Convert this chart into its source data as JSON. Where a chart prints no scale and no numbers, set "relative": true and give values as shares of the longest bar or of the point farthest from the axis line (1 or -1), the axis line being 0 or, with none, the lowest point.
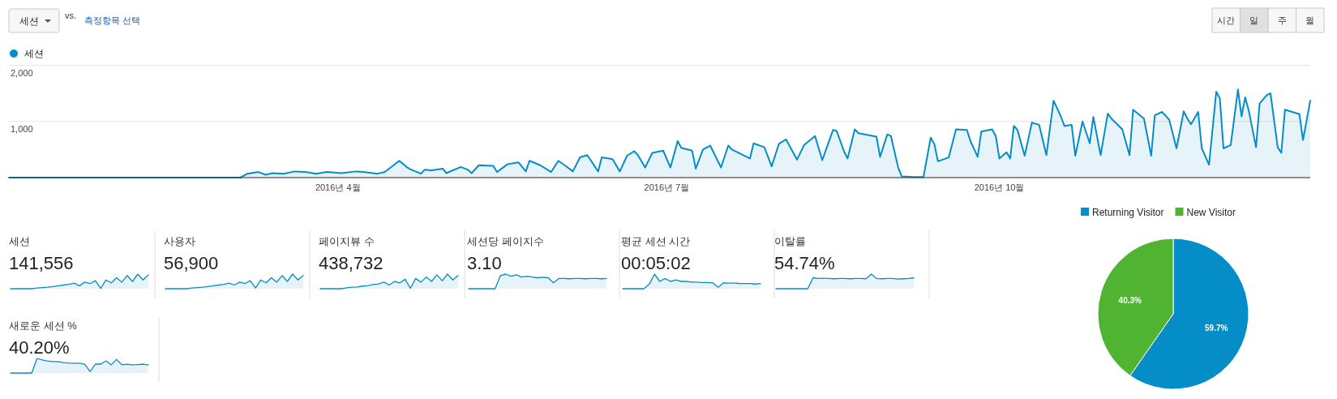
{
  "chart_data": [
    {
      "type": "other",
      "annotations": [
        "세션",
        "vs.",
        "측정항목 선택",
        "시간",
        "일",
        "주",
        "월"
      ]
    },
    {
      "type": "area",
      "legend": "top left",
      "grid": "y",
      "xlim": [
        "2016-01-01",
        "2016-12-26"
      ],
      "ylim": [
        0,
        2000
      ],
      "xticks": [
        {
          "value": "2016-04-01",
          "label": "2016년 4월"
        },
        {
          "value": "2016-07-01",
          "label": "2016년 7월"
        },
        {
          "value": "2016-10-01",
          "label": "2016년 10월"
        }
      ],
      "yticks": [
        {
          "value": 0,
          "label": null
        },
        {
          "value": 1000,
          "label": "1,000"
        },
        {
          "value": 2000,
          "label": "2,000"
        }
      ],
      "x": [
        "2016-01-01",
        "2016-03-05",
        "2016-03-07",
        "2016-03-10",
        "2016-03-12",
        "2016-03-14",
        "2016-03-17",
        "2016-03-20",
        "2016-03-23",
        "2016-03-26",
        "2016-03-29",
        "2016-04-02",
        "2016-04-06",
        "2016-04-08",
        "2016-04-12",
        "2016-04-14",
        "2016-04-18",
        "2016-04-20",
        "2016-04-21",
        "2016-04-24",
        "2016-04-25",
        "2016-04-27",
        "2016-04-30",
        "2016-05-01",
        "2016-05-05",
        "2016-05-07",
        "2016-05-08",
        "2016-05-10",
        "2016-05-14",
        "2016-05-15",
        "2016-05-18",
        "2016-05-21",
        "2016-05-23",
        "2016-05-24",
        "2016-05-27",
        "2016-05-30",
        "2016-06-01",
        "2016-06-03",
        "2016-06-05",
        "2016-06-07",
        "2016-06-09",
        "2016-06-12",
        "2016-06-13",
        "2016-06-16",
        "2016-06-18",
        "2016-06-20",
        "2016-06-22",
        "2016-06-23",
        "2016-06-25",
        "2016-06-27",
        "2016-06-30",
        "2016-07-02",
        "2016-07-04",
        "2016-07-05",
        "2016-07-08",
        "2016-07-09",
        "2016-07-11",
        "2016-07-13",
        "2016-07-16",
        "2016-07-18",
        "2016-07-19",
        "2016-07-24",
        "2016-07-25",
        "2016-07-28",
        "2016-07-30",
        "2016-08-01",
        "2016-08-03",
        "2016-08-06",
        "2016-08-08",
        "2016-08-11",
        "2016-08-13",
        "2016-08-16",
        "2016-08-17",
        "2016-08-19",
        "2016-08-20",
        "2016-08-22",
        "2016-08-23",
        "2016-08-28",
        "2016-08-29",
        "2016-08-31",
        "2016-09-01",
        "2016-09-03",
        "2016-09-04",
        "2016-09-07",
        "2016-09-10",
        "2016-09-12",
        "2016-09-13",
        "2016-09-14",
        "2016-09-17",
        "2016-09-19",
        "2016-09-22",
        "2016-09-23",
        "2016-09-25",
        "2016-09-26",
        "2016-09-29",
        "2016-09-30",
        "2016-10-01",
        "2016-10-03",
        "2016-10-04",
        "2016-10-05",
        "2016-10-06",
        "2016-10-08",
        "2016-10-10",
        "2016-10-12",
        "2016-10-14",
        "2016-10-16",
        "2016-10-18",
        "2016-10-19",
        "2016-10-21",
        "2016-10-22",
        "2016-10-24",
        "2016-10-26",
        "2016-10-27",
        "2016-10-29",
        "2016-10-31",
        "2016-11-01",
        "2016-11-04",
        "2016-11-06",
        "2016-11-07",
        "2016-11-10",
        "2016-11-12",
        "2016-11-13",
        "2016-11-15",
        "2016-11-17",
        "2016-11-19",
        "2016-11-21",
        "2016-11-22",
        "2016-11-23",
        "2016-11-25",
        "2016-11-26",
        "2016-11-28",
        "2016-11-30",
        "2016-12-01",
        "2016-12-02",
        "2016-12-04",
        "2016-12-06",
        "2016-12-07",
        "2016-12-08",
        "2016-12-09",
        "2016-12-11",
        "2016-12-12",
        "2016-12-14",
        "2016-12-15",
        "2016-12-17",
        "2016-12-18",
        "2016-12-19",
        "2016-12-21",
        "2016-12-23",
        "2016-12-24",
        "2016-12-26"
      ],
      "series": [
        {
          "name": "세션",
          "color": "#058dc7",
          "values": [
            0,
            0,
            70,
            100,
            50,
            80,
            70,
            110,
            100,
            70,
            100,
            80,
            110,
            100,
            70,
            100,
            300,
            190,
            150,
            70,
            140,
            130,
            160,
            80,
            190,
            140,
            80,
            220,
            210,
            100,
            240,
            270,
            110,
            300,
            220,
            100,
            300,
            210,
            110,
            360,
            400,
            110,
            360,
            330,
            110,
            390,
            470,
            400,
            180,
            440,
            480,
            180,
            650,
            530,
            480,
            160,
            500,
            570,
            180,
            570,
            500,
            340,
            610,
            540,
            200,
            600,
            680,
            320,
            580,
            740,
            310,
            850,
            830,
            470,
            340,
            860,
            790,
            730,
            370,
            770,
            740,
            180,
            20,
            10,
            10,
            710,
            600,
            290,
            360,
            860,
            850,
            650,
            370,
            820,
            860,
            740,
            340,
            450,
            340,
            920,
            850,
            390,
            980,
            940,
            400,
            1370,
            1090,
            920,
            940,
            390,
            1000,
            610,
            1080,
            400,
            1140,
            1050,
            860,
            400,
            1210,
            1050,
            390,
            1110,
            1170,
            1030,
            520,
            1180,
            1050,
            950,
            1170,
            520,
            230,
            1530,
            1410,
            520,
            580,
            1570,
            1090,
            1430,
            1190,
            540,
            1320,
            1470,
            1500,
            540,
            440,
            1210,
            1170,
            1130,
            670,
            1370
          ]
        }
      ]
    },
    {
      "type": "area",
      "relative": true,
      "title": "세션",
      "annotations": [
        "141,556"
      ],
      "categories": [
        null,
        null,
        null,
        null,
        null,
        null,
        null,
        null,
        null,
        null,
        null,
        null,
        null,
        null,
        null,
        null,
        null,
        null,
        null,
        null,
        null,
        null,
        null,
        null,
        null,
        null,
        null
      ],
      "series": [
        {
          "color": "#058dc7",
          "values": [
            0,
            0,
            0,
            0,
            0,
            0.05,
            0.08,
            0.1,
            0.15,
            0.2,
            0.25,
            0.3,
            0.38,
            0.2,
            0.45,
            0.35,
            0.55,
            0.02,
            0.6,
            0.4,
            0.75,
            0.45,
            0.9,
            0.5,
            1,
            0.6,
            0.95
          ]
        }
      ]
    },
    {
      "type": "area",
      "relative": true,
      "title": "사용자",
      "annotations": [
        "56,900"
      ],
      "categories": [
        null,
        null,
        null,
        null,
        null,
        null,
        null,
        null,
        null,
        null,
        null,
        null,
        null,
        null,
        null,
        null,
        null,
        null,
        null,
        null,
        null,
        null,
        null,
        null,
        null,
        null,
        null
      ],
      "series": [
        {
          "color": "#058dc7",
          "values": [
            0,
            0,
            0,
            0,
            0,
            0.05,
            0.08,
            0.1,
            0.15,
            0.2,
            0.25,
            0.3,
            0.38,
            0.25,
            0.45,
            0.35,
            0.55,
            0.05,
            0.6,
            0.4,
            0.75,
            0.45,
            0.9,
            0.5,
            1,
            0.6,
            0.9
          ]
        }
      ]
    },
    {
      "type": "area",
      "relative": true,
      "title": "페이지뷰 수",
      "annotations": [
        "438,732"
      ],
      "categories": [
        null,
        null,
        null,
        null,
        null,
        null,
        null,
        null,
        null,
        null,
        null,
        null,
        null,
        null,
        null,
        null,
        null,
        null,
        null,
        null,
        null,
        null,
        null,
        null,
        null,
        null,
        null
      ],
      "series": [
        {
          "color": "#058dc7",
          "values": [
            0,
            0,
            0,
            0,
            0,
            0.06,
            0.1,
            0.12,
            0.18,
            0.22,
            0.28,
            0.33,
            0.45,
            0.25,
            0.5,
            0.4,
            0.65,
            0.03,
            0.7,
            0.45,
            0.8,
            0.5,
            0.95,
            0.55,
            1,
            0.6,
            0.9
          ]
        }
      ]
    },
    {
      "type": "area",
      "relative": true,
      "title": "세션당 페이지수",
      "annotations": [
        "3.10"
      ],
      "categories": [
        null,
        null,
        null,
        null,
        null,
        null,
        null,
        null,
        null,
        null,
        null,
        null,
        null,
        null,
        null,
        null,
        null,
        null,
        null,
        null,
        null,
        null,
        null,
        null,
        null,
        null,
        null
      ],
      "series": [
        {
          "color": "#058dc7",
          "values": [
            0,
            0,
            0,
            0,
            0,
            0,
            0.9,
            1,
            0.85,
            0.95,
            0.8,
            0.85,
            0.8,
            0.75,
            0.78,
            0.75,
            0.4,
            0.7,
            0.7,
            0.68,
            0.7,
            0.7,
            0.68,
            0.7,
            0.7,
            0.68,
            0.7
          ]
        }
      ]
    },
    {
      "type": "area",
      "relative": true,
      "title": "평균 세션 시간",
      "annotations": [
        "00:05:02"
      ],
      "categories": [
        null,
        null,
        null,
        null,
        null,
        null,
        null,
        null,
        null,
        null,
        null,
        null,
        null,
        null,
        null,
        null,
        null,
        null,
        null,
        null,
        null,
        null,
        null,
        null,
        null,
        null,
        null
      ],
      "series": [
        {
          "color": "#058dc7",
          "values": [
            0,
            0,
            0,
            0,
            0,
            0.3,
            1,
            0.5,
            0.7,
            0.5,
            0.6,
            0.5,
            0.5,
            0.45,
            0.45,
            0.42,
            0.42,
            0.4,
            0.1,
            0.4,
            0.38,
            0.38,
            0.36,
            0.35,
            0.35,
            0.32,
            0.35
          ]
        }
      ]
    },
    {
      "type": "area",
      "relative": true,
      "title": "이탈률",
      "annotations": [
        "54.74%"
      ],
      "categories": [
        null,
        null,
        null,
        null,
        null,
        null,
        null,
        null,
        null,
        null,
        null,
        null,
        null,
        null,
        null,
        null,
        null,
        null,
        null,
        null,
        null,
        null,
        null,
        null,
        null,
        null,
        null
      ],
      "series": [
        {
          "color": "#058dc7",
          "values": [
            0,
            0,
            0,
            0,
            0,
            0,
            0,
            0.75,
            0.7,
            0.72,
            0.7,
            0.68,
            0.7,
            0.7,
            0.68,
            0.7,
            0.7,
            0.68,
            1,
            0.7,
            0.68,
            0.7,
            0.7,
            0.66,
            0.68,
            0.7,
            0.75
          ]
        }
      ]
    },
    {
      "type": "area",
      "relative": true,
      "title": "새로운 세션 %",
      "annotations": [
        "40.20%"
      ],
      "categories": [
        null,
        null,
        null,
        null,
        null,
        null,
        null,
        null,
        null,
        null,
        null,
        null,
        null,
        null,
        null,
        null,
        null,
        null,
        null,
        null,
        null,
        null,
        null,
        null,
        null,
        null,
        null
      ],
      "series": [
        {
          "color": "#058dc7",
          "values": [
            0,
            0,
            0,
            0,
            0,
            1,
            0.89,
            0.83,
            0.78,
            0.78,
            0.72,
            0.69,
            0.67,
            0.67,
            0.61,
            0.11,
            0.61,
            0.61,
            0.83,
            0.56,
            0.94,
            0.56,
            0.61,
            0.56,
            0.58,
            0.61,
            0.56
          ]
        }
      ]
    },
    {
      "type": "pie",
      "legend": "top",
      "categories": [
        "Returning Visitor",
        "New Visitor"
      ],
      "values": [
        59.7,
        40.3
      ],
      "colors": [
        "#058dc7",
        "#50b432"
      ],
      "value_labels": [
        "59.7%",
        "40.3%"
      ]
    }
  ]
}
